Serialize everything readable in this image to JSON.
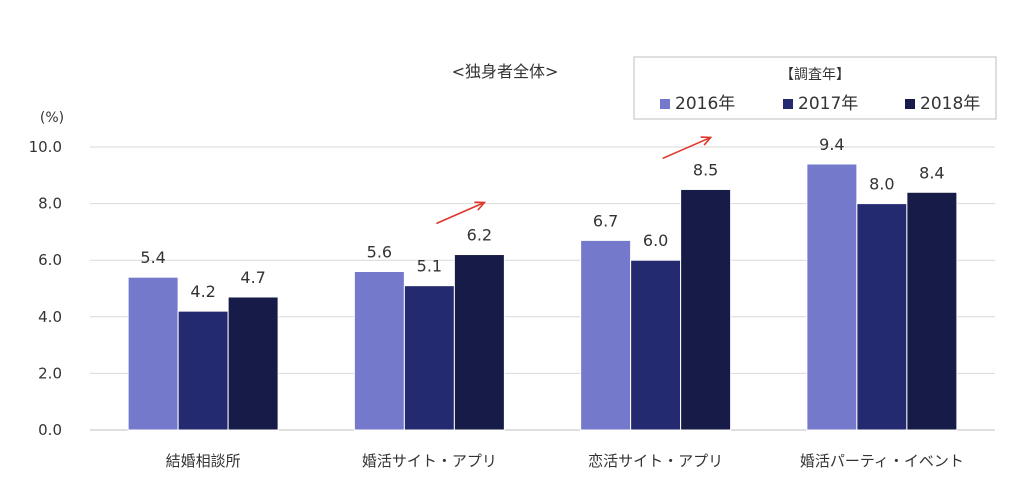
{
  "chart_data": {
    "type": "bar",
    "title": "<独身者全体>",
    "unit_label": "(%)",
    "categories": [
      "結婚相談所",
      "婚活サイト・アプリ",
      "恋活サイト・アプリ",
      "婚活パーティ・イベント"
    ],
    "series": [
      {
        "name": "2016年",
        "values": [
          5.4,
          5.6,
          6.7,
          9.4
        ],
        "color": "#7479cc"
      },
      {
        "name": "2017年",
        "values": [
          4.2,
          5.1,
          6.0,
          8.0
        ],
        "color": "#242a6f"
      },
      {
        "name": "2018年",
        "values": [
          4.7,
          6.2,
          8.5,
          8.4
        ],
        "color": "#171b47"
      }
    ],
    "ylim": [
      0,
      10
    ],
    "yticks": [
      "0.0",
      "2.0",
      "4.0",
      "6.0",
      "8.0",
      "10.0"
    ],
    "grid": true,
    "legend": {
      "title": "【調査年】",
      "position": "top-right"
    },
    "annotations": [
      {
        "type": "arrow",
        "category_index": 1,
        "color": "#e0362b"
      },
      {
        "type": "arrow",
        "category_index": 2,
        "color": "#e0362b"
      }
    ]
  }
}
